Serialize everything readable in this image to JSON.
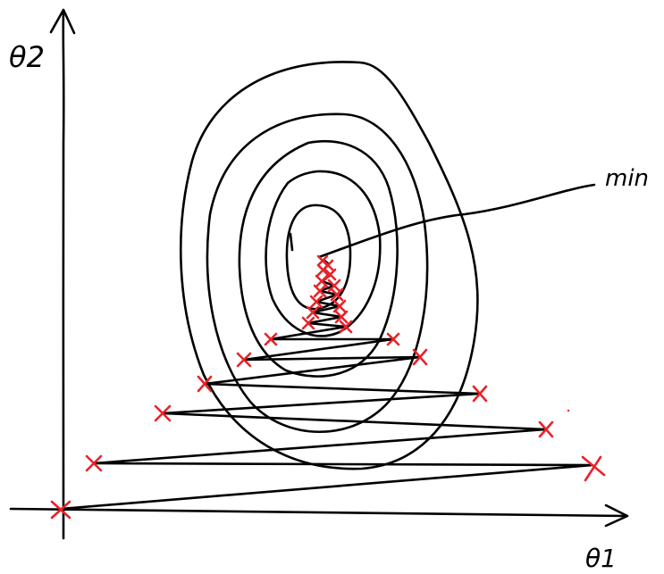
{
  "labels": {
    "y_axis": "θ2",
    "x_axis": "θ1",
    "minimum": "min"
  },
  "colors": {
    "ink": "#000000",
    "markers": "#e8232a",
    "background": "#ffffff"
  }
}
